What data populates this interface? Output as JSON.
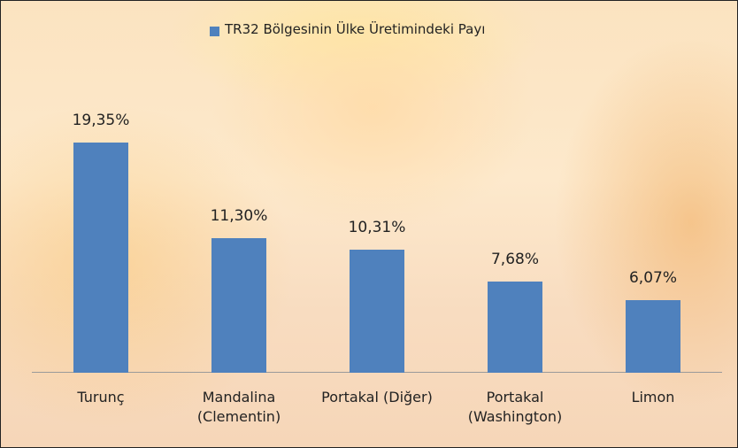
{
  "chart_data": {
    "type": "bar",
    "legend": "TR32 Bölgesinin Ülke Üretimindeki Payı",
    "categories": [
      "Turunç",
      "Mandalina (Clementin)",
      "Portakal (Diğer)",
      "Portakal (Washington)",
      "Limon"
    ],
    "values": [
      19.35,
      11.3,
      10.31,
      7.68,
      6.07
    ],
    "value_labels": [
      "19,35%",
      "11,30%",
      "10,31%",
      "7,68%",
      "6,07%"
    ],
    "color": "#4f81bd",
    "legend_position": "top"
  }
}
